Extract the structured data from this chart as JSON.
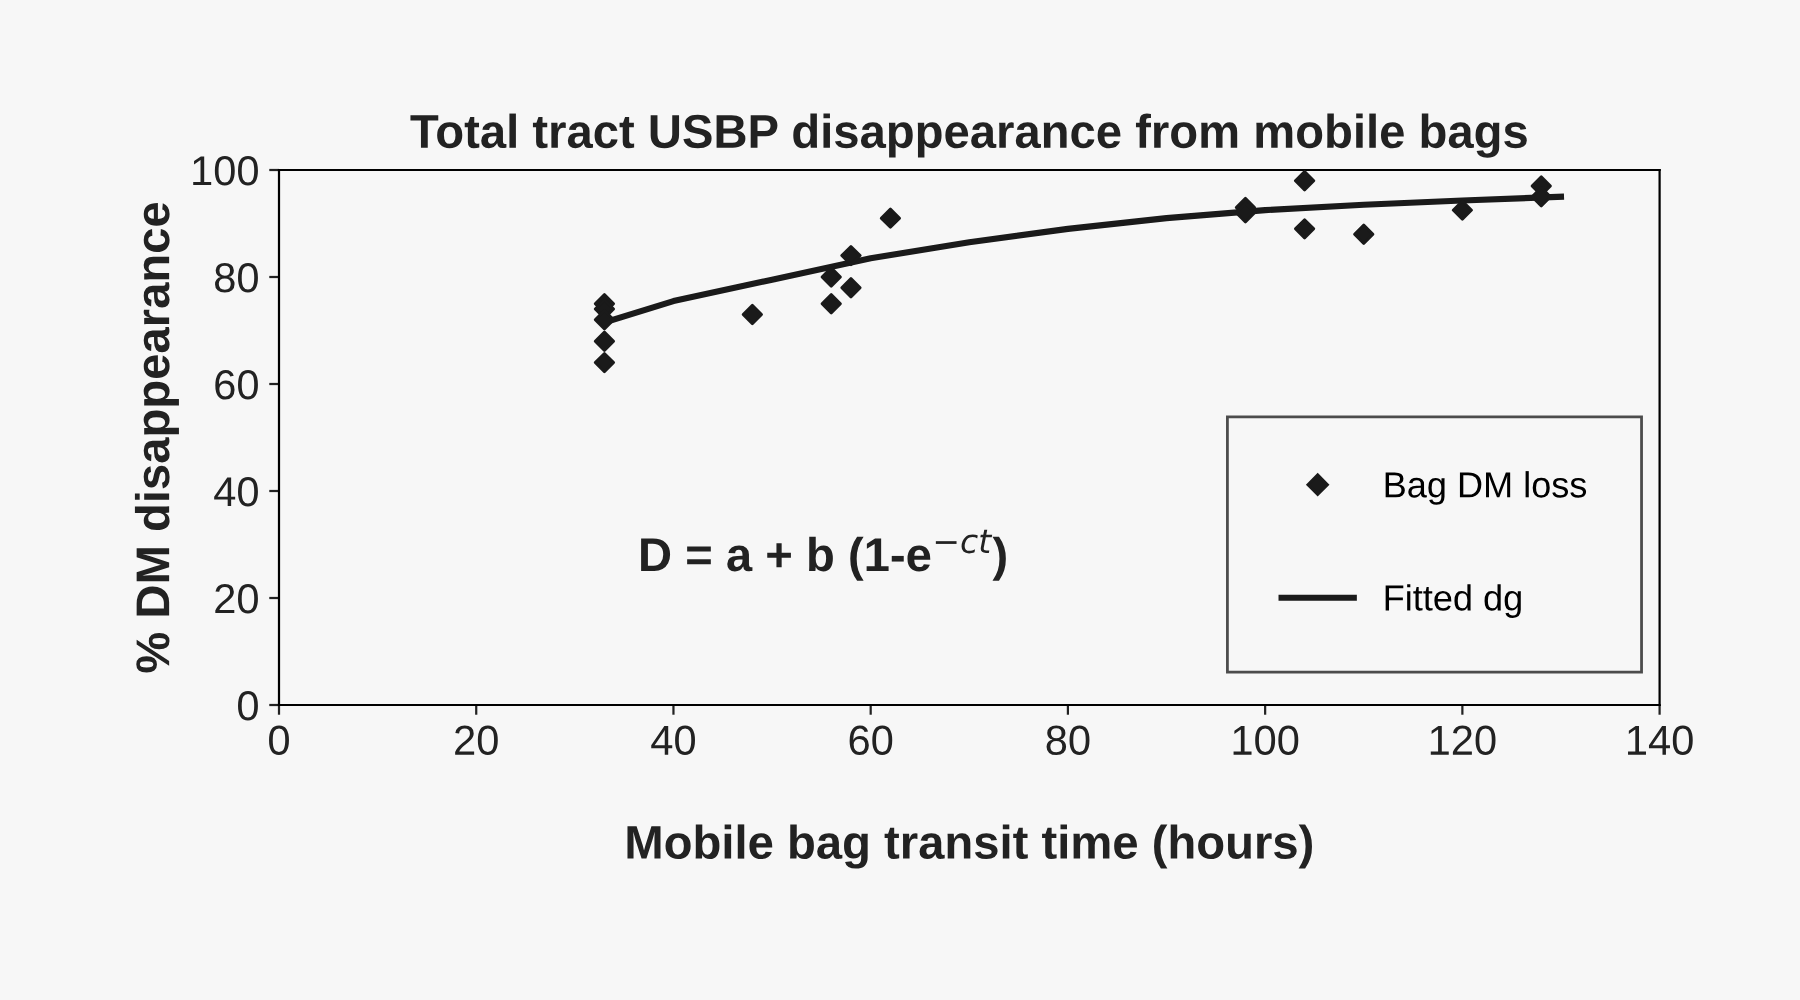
{
  "chart_data": {
    "type": "scatter",
    "title": "Total tract USBP disappearance from mobile bags",
    "xlabel": "Mobile bag transit time (hours)",
    "ylabel": "% DM disappearance",
    "annotations": [
      "D = a + b (1-e$^{−ct}$)"
    ],
    "series": [
      {
        "name": "Bag DM loss",
        "marker": "diamond",
        "color": "#1a1a1a",
        "x": [
          33,
          33,
          33,
          33,
          33,
          48,
          56,
          56,
          58,
          58,
          62,
          98,
          98,
          104,
          104,
          110,
          120,
          128,
          128
        ],
        "values": [
          75,
          74,
          72,
          68,
          64,
          73,
          80,
          75,
          84,
          78,
          91,
          93,
          92,
          98,
          89,
          88,
          92.5,
          97,
          95
        ]
      },
      {
        "name": "Fitted dg",
        "type": "line",
        "marker": "none",
        "line_style": "solid",
        "color": "#1a1a1a",
        "x": [
          33,
          40,
          50,
          60,
          70,
          80,
          90,
          100,
          110,
          120,
          130
        ],
        "values": [
          71.5,
          75.5,
          79.5,
          83.5,
          86.5,
          89,
          91,
          92.5,
          93.5,
          94.3,
          95
        ]
      }
    ],
    "xlim": [
      0,
      140
    ],
    "xticks": [
      0,
      20,
      40,
      60,
      80,
      100,
      120,
      140
    ],
    "ylim": [
      0,
      100
    ],
    "yticks": [
      0,
      20,
      40,
      60,
      80,
      100
    ],
    "grid": false,
    "legend": "right"
  }
}
